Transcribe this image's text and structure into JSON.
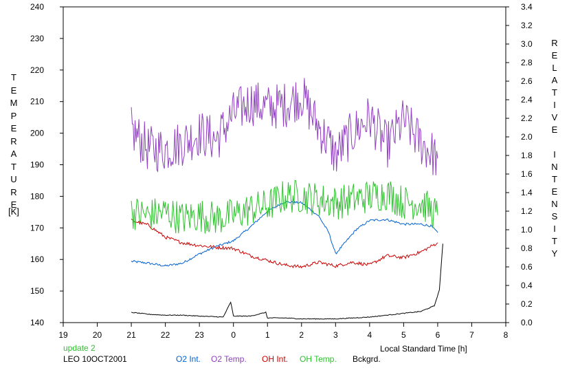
{
  "chart_data": {
    "type": "line",
    "title": "",
    "xlabel": "Local Standard Time [h]",
    "ylabel_left": "TEMPERATURE",
    "ylabel_left_unit": "[K]",
    "ylabel_right": "RELATIVE INTENSITY",
    "xlim": [
      19,
      8
    ],
    "x_ticks": [
      19,
      20,
      21,
      22,
      23,
      0,
      1,
      2,
      3,
      4,
      5,
      6,
      7,
      8
    ],
    "ylim_left": [
      140,
      240
    ],
    "y_ticks_left": [
      140,
      150,
      160,
      170,
      180,
      190,
      200,
      210,
      220,
      230,
      240
    ],
    "ylim_right": [
      0.0,
      3.4
    ],
    "y_ticks_right": [
      "0.0",
      "0.2",
      "0.4",
      "0.6",
      "0.8",
      "1.0",
      "1.2",
      "1.4",
      "1.6",
      "1.8",
      "2.0",
      "2.2",
      "2.4",
      "2.6",
      "2.8",
      "3.0",
      "3.2",
      "3.4"
    ],
    "grid": false,
    "legend_position": "bottom",
    "series": [
      {
        "name": "O2 Int.",
        "axis": "right",
        "color": "#0060d0",
        "points": [
          [
            21.0,
            0.66
          ],
          [
            21.5,
            0.64
          ],
          [
            22.0,
            0.61
          ],
          [
            22.5,
            0.64
          ],
          [
            23.0,
            0.74
          ],
          [
            23.5,
            0.82
          ],
          [
            0.0,
            0.88
          ],
          [
            0.5,
            1.03
          ],
          [
            1.0,
            1.2
          ],
          [
            1.5,
            1.3
          ],
          [
            2.0,
            1.29
          ],
          [
            2.5,
            1.15
          ],
          [
            2.8,
            0.97
          ],
          [
            3.0,
            0.74
          ],
          [
            3.3,
            0.87
          ],
          [
            3.6,
            1.0
          ],
          [
            4.0,
            1.1
          ],
          [
            4.5,
            1.11
          ],
          [
            5.0,
            1.06
          ],
          [
            5.5,
            1.06
          ],
          [
            5.8,
            1.04
          ],
          [
            6.0,
            0.97
          ]
        ]
      },
      {
        "name": "O2 Temp.",
        "axis": "left",
        "color": "#9040c0",
        "points": [
          [
            21.0,
            201
          ],
          [
            21.5,
            195
          ],
          [
            22.0,
            195
          ],
          [
            22.5,
            197
          ],
          [
            23.0,
            200
          ],
          [
            23.5,
            198
          ],
          [
            0.0,
            206
          ],
          [
            0.5,
            210
          ],
          [
            1.0,
            208
          ],
          [
            1.5,
            209
          ],
          [
            2.0,
            212
          ],
          [
            2.5,
            202
          ],
          [
            2.8,
            197
          ],
          [
            3.0,
            193
          ],
          [
            3.5,
            200
          ],
          [
            4.0,
            205
          ],
          [
            4.5,
            196
          ],
          [
            5.0,
            204
          ],
          [
            5.5,
            197
          ],
          [
            6.0,
            192
          ]
        ]
      },
      {
        "name": "OH Int.",
        "axis": "right",
        "color": "#cc0000",
        "points": [
          [
            21.0,
            1.1
          ],
          [
            21.5,
            1.05
          ],
          [
            22.0,
            0.92
          ],
          [
            22.5,
            0.86
          ],
          [
            23.0,
            0.83
          ],
          [
            23.5,
            0.81
          ],
          [
            0.0,
            0.8
          ],
          [
            0.5,
            0.72
          ],
          [
            1.0,
            0.67
          ],
          [
            1.5,
            0.62
          ],
          [
            2.0,
            0.6
          ],
          [
            2.5,
            0.65
          ],
          [
            3.0,
            0.61
          ],
          [
            3.5,
            0.65
          ],
          [
            4.0,
            0.62
          ],
          [
            4.5,
            0.72
          ],
          [
            5.0,
            0.7
          ],
          [
            5.5,
            0.76
          ],
          [
            6.0,
            0.86
          ]
        ]
      },
      {
        "name": "OH Temp.",
        "axis": "left",
        "color": "#30c030",
        "points": [
          [
            21.0,
            175
          ],
          [
            21.5,
            174
          ],
          [
            22.0,
            175
          ],
          [
            22.5,
            173
          ],
          [
            23.0,
            174
          ],
          [
            23.5,
            173
          ],
          [
            0.0,
            174
          ],
          [
            0.5,
            176
          ],
          [
            1.0,
            177
          ],
          [
            1.5,
            180
          ],
          [
            2.0,
            180
          ],
          [
            2.5,
            179
          ],
          [
            3.0,
            178
          ],
          [
            3.5,
            179
          ],
          [
            4.0,
            180
          ],
          [
            4.5,
            181
          ],
          [
            5.0,
            178
          ],
          [
            5.5,
            178
          ],
          [
            6.0,
            174
          ]
        ]
      },
      {
        "name": "Bckgrd.",
        "axis": "right",
        "color": "#000000",
        "points": [
          [
            21.0,
            0.11
          ],
          [
            21.5,
            0.09
          ],
          [
            22.0,
            0.08
          ],
          [
            22.5,
            0.08
          ],
          [
            23.0,
            0.07
          ],
          [
            23.7,
            0.06
          ],
          [
            23.92,
            0.22
          ],
          [
            24.0,
            0.07
          ],
          [
            24.5,
            0.07
          ],
          [
            24.95,
            0.11
          ],
          [
            25.0,
            0.05
          ],
          [
            25.5,
            0.05
          ],
          [
            26.0,
            0.04
          ],
          [
            26.5,
            0.04
          ],
          [
            27.0,
            0.04
          ],
          [
            27.5,
            0.05
          ],
          [
            28.0,
            0.06
          ],
          [
            28.5,
            0.08
          ],
          [
            29.0,
            0.1
          ],
          [
            29.5,
            0.12
          ],
          [
            29.9,
            0.18
          ],
          [
            30.05,
            0.35
          ],
          [
            30.15,
            0.85
          ]
        ]
      }
    ],
    "annotations": [
      "update 2",
      "LEO 10OCT2001"
    ]
  },
  "legend": [
    {
      "label": "O2 Int.",
      "color": "#0060d0"
    },
    {
      "label": "O2 Temp.",
      "color": "#9040c0"
    },
    {
      "label": "OH Int.",
      "color": "#cc0000"
    },
    {
      "label": "OH Temp.",
      "color": "#30c030"
    },
    {
      "label": "Bckgrd.",
      "color": "#000000"
    }
  ],
  "footer": {
    "update": "update 2",
    "station": "LEO 10OCT2001",
    "update_color": "#30c030"
  }
}
